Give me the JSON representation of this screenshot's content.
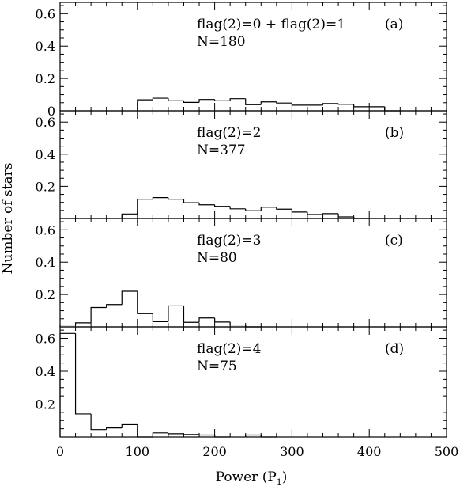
{
  "chart_data": [
    {
      "type": "bar",
      "panel_label": "(a)",
      "annotation_flag": "flag(2)=0  +  flag(2)=1",
      "annotation_n": "N=180",
      "bin_edges": [
        0,
        20,
        40,
        60,
        80,
        100,
        120,
        140,
        160,
        180,
        200,
        220,
        240,
        260,
        280,
        300,
        320,
        340,
        360,
        380,
        400,
        420,
        440,
        460,
        480,
        500
      ],
      "values": [
        0,
        0,
        0,
        0,
        0,
        0.068,
        0.078,
        0.062,
        0.052,
        0.07,
        0.062,
        0.075,
        0.038,
        0.055,
        0.048,
        0.035,
        0.035,
        0.045,
        0.04,
        0.025,
        0.025,
        0,
        0,
        0,
        0
      ],
      "ylim": [
        0,
        0.67
      ],
      "yticks": [
        "0",
        "0.2",
        "0.4",
        "0.6"
      ]
    },
    {
      "type": "bar",
      "panel_label": "(b)",
      "annotation_flag": "flag(2)=2",
      "annotation_n": "N=377",
      "bin_edges": [
        0,
        20,
        40,
        60,
        80,
        100,
        120,
        140,
        160,
        180,
        200,
        220,
        240,
        260,
        280,
        300,
        320,
        340,
        360,
        380,
        400,
        420,
        440,
        460,
        480,
        500
      ],
      "values": [
        0,
        0,
        0,
        0,
        0.028,
        0.12,
        0.13,
        0.12,
        0.098,
        0.085,
        0.075,
        0.06,
        0.048,
        0.07,
        0.058,
        0.04,
        0.025,
        0.03,
        0.01,
        0,
        0,
        0,
        0,
        0,
        0
      ],
      "ylim": [
        0,
        0.67
      ],
      "yticks": [
        "0.2",
        "0.4",
        "0.6"
      ]
    },
    {
      "type": "bar",
      "panel_label": "(c)",
      "annotation_flag": "flag(2)=3",
      "annotation_n": "N=80",
      "bin_edges": [
        0,
        20,
        40,
        60,
        80,
        100,
        120,
        140,
        160,
        180,
        200,
        220,
        240,
        260,
        280,
        300,
        320,
        340,
        360,
        380,
        400,
        420,
        440,
        460,
        480,
        500
      ],
      "values": [
        0.012,
        0.025,
        0.12,
        0.138,
        0.22,
        0.082,
        0.032,
        0.13,
        0.028,
        0.055,
        0.03,
        0.012,
        0,
        0,
        0,
        0,
        0,
        0,
        0,
        0,
        0,
        0,
        0,
        0,
        0
      ],
      "ylim": [
        0,
        0.67
      ],
      "yticks": [
        "0.2",
        "0.4",
        "0.6"
      ]
    },
    {
      "type": "bar",
      "panel_label": "(d)",
      "annotation_flag": "flag(2)=4",
      "annotation_n": "N=75",
      "bin_edges": [
        0,
        20,
        40,
        60,
        80,
        100,
        120,
        140,
        160,
        180,
        200,
        220,
        240,
        260,
        280,
        300,
        320,
        340,
        360,
        380,
        400,
        420,
        440,
        460,
        480,
        500
      ],
      "values": [
        0.63,
        0.14,
        0.045,
        0.055,
        0.075,
        0,
        0.025,
        0.02,
        0.015,
        0.012,
        0,
        0,
        0.012,
        0,
        0,
        0,
        0,
        0,
        0,
        0,
        0,
        0,
        0,
        0,
        0
      ],
      "ylim": [
        0,
        0.67
      ],
      "yticks": [
        "0.2",
        "0.4",
        "0.6"
      ]
    }
  ],
  "axes": {
    "xlabel": "Power (P",
    "xlabel_sub": "1",
    "xlabel_close": ")",
    "ylabel": "Number of stars",
    "xlim": [
      0,
      500
    ],
    "xticks": [
      "0",
      "100",
      "200",
      "300",
      "400",
      "500"
    ]
  }
}
